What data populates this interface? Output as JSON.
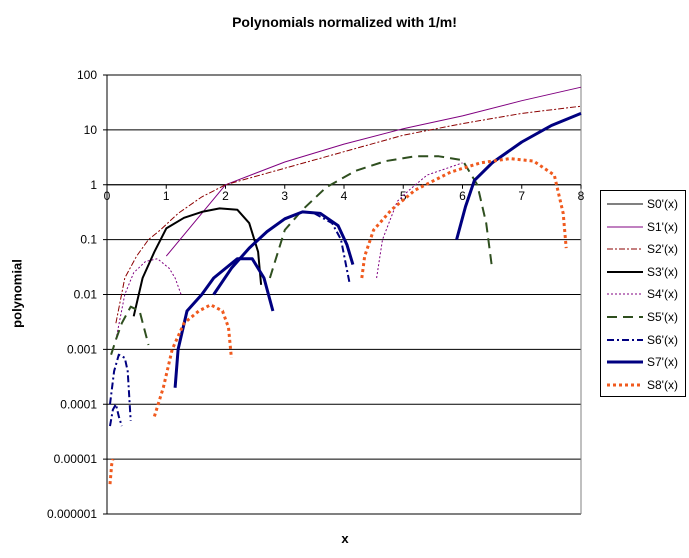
{
  "chart_data": {
    "type": "line",
    "title": "Polynomials normalized with 1/m!",
    "xlabel": "x",
    "ylabel": "polynomial",
    "xlim": [
      0,
      8
    ],
    "ylim": [
      1e-06,
      100
    ],
    "y_scale": "log",
    "x_ticks": [
      "0",
      "1",
      "2",
      "3",
      "4",
      "5",
      "6",
      "7",
      "8"
    ],
    "y_ticks": [
      "100",
      "10",
      "1",
      "0.1",
      "0.01",
      "0.001",
      "0.0001",
      "0.00001",
      "0.000001"
    ],
    "y_tick_values": [
      100,
      10,
      1,
      0.1,
      0.01,
      0.001,
      0.0001,
      1e-05,
      1e-06
    ],
    "x_axis_crosses_y_at": 1,
    "grid": "horizontal",
    "legend_position": "right",
    "series": [
      {
        "name": "S0'(x)",
        "color": "#000000",
        "style": "solid",
        "width": 1,
        "segments": []
      },
      {
        "name": "S1'(x)",
        "color": "#800080",
        "style": "solid",
        "width": 1,
        "segments": [
          [
            [
              1.0,
              0.05
            ],
            [
              2,
              1
            ],
            [
              3,
              2.6
            ],
            [
              4,
              5.5
            ],
            [
              5,
              10.5
            ],
            [
              6,
              18
            ],
            [
              7,
              34
            ],
            [
              8,
              60
            ]
          ]
        ]
      },
      {
        "name": "S2'(x)",
        "color": "#8b0000",
        "style": "dashdot",
        "width": 1,
        "segments": [
          [
            [
              0.15,
              0.003
            ],
            [
              0.3,
              0.02
            ],
            [
              0.5,
              0.05
            ],
            [
              0.7,
              0.1
            ],
            [
              0.9,
              0.15
            ],
            [
              1.2,
              0.3
            ],
            [
              1.6,
              0.6
            ],
            [
              2,
              1
            ],
            [
              3,
              2
            ],
            [
              4,
              4
            ],
            [
              5,
              8
            ],
            [
              6,
              13
            ],
            [
              7,
              20
            ],
            [
              8,
              27
            ]
          ]
        ]
      },
      {
        "name": "S3'(x)",
        "color": "#000000",
        "style": "solid",
        "width": 2,
        "segments": [
          [
            [
              0.45,
              0.004
            ],
            [
              0.6,
              0.02
            ],
            [
              0.8,
              0.06
            ],
            [
              1,
              0.16
            ],
            [
              1.3,
              0.25
            ],
            [
              1.6,
              0.32
            ],
            [
              1.9,
              0.37
            ],
            [
              2.2,
              0.35
            ],
            [
              2.4,
              0.2
            ],
            [
              2.55,
              0.06
            ],
            [
              2.6,
              0.015
            ]
          ]
        ]
      },
      {
        "name": "S4'(x)",
        "color": "#800080",
        "style": "dotted",
        "width": 1,
        "segments": [
          [
            [
              0.15,
              0.0015
            ],
            [
              0.3,
              0.01
            ],
            [
              0.45,
              0.025
            ],
            [
              0.65,
              0.04
            ],
            [
              0.85,
              0.045
            ],
            [
              1.05,
              0.03
            ],
            [
              1.15,
              0.02
            ],
            [
              1.25,
              0.01
            ]
          ],
          [
            [
              4.55,
              0.02
            ],
            [
              4.65,
              0.1
            ],
            [
              4.9,
              0.5
            ],
            [
              5.1,
              0.8
            ],
            [
              5.4,
              1.5
            ],
            [
              6,
              2.5
            ]
          ]
        ]
      },
      {
        "name": "S5'(x)",
        "color": "#2f4f1f",
        "style": "dashed",
        "width": 2,
        "segments": [
          [
            [
              0.07,
              0.0008
            ],
            [
              0.15,
              0.0015
            ],
            [
              0.25,
              0.003
            ],
            [
              0.4,
              0.006
            ],
            [
              0.55,
              0.005
            ],
            [
              0.7,
              0.0012
            ]
          ],
          [
            [
              2.75,
              0.02
            ],
            [
              3.0,
              0.15
            ],
            [
              3.3,
              0.35
            ],
            [
              3.7,
              0.9
            ],
            [
              4.2,
              1.8
            ],
            [
              4.7,
              2.7
            ],
            [
              5.2,
              3.3
            ],
            [
              5.6,
              3.3
            ],
            [
              6,
              2.8
            ],
            [
              6.25,
              1.0
            ],
            [
              6.4,
              0.2
            ],
            [
              6.5,
              0.03
            ]
          ]
        ]
      },
      {
        "name": "S6'(x)",
        "color": "#000080",
        "style": "dashdot",
        "width": 2,
        "segments": [
          [
            [
              0.05,
              4e-05
            ],
            [
              0.1,
              8e-05
            ],
            [
              0.15,
              0.0001
            ],
            [
              0.2,
              6e-05
            ],
            [
              0.25,
              4e-05
            ]
          ],
          [
            [
              0.05,
              0.0001
            ],
            [
              0.12,
              0.0004
            ],
            [
              0.2,
              0.0008
            ],
            [
              0.3,
              0.0007
            ],
            [
              0.35,
              0.0004
            ],
            [
              0.4,
              5e-05
            ]
          ],
          [
            [
              3.5,
              0.3
            ],
            [
              3.8,
              0.2
            ],
            [
              3.95,
              0.1
            ],
            [
              4.1,
              0.015
            ]
          ]
        ]
      },
      {
        "name": "S7'(x)",
        "color": "#000080",
        "style": "solid",
        "width": 3,
        "segments": [
          [
            [
              1.15,
              0.0002
            ],
            [
              1.2,
              0.001
            ],
            [
              1.35,
              0.005
            ],
            [
              1.6,
              0.01
            ],
            [
              1.8,
              0.02
            ],
            [
              2.2,
              0.045
            ],
            [
              2.45,
              0.045
            ],
            [
              2.65,
              0.02
            ],
            [
              2.8,
              0.005
            ]
          ],
          [
            [
              1.8,
              0.01
            ],
            [
              2.1,
              0.03
            ],
            [
              2.4,
              0.07
            ],
            [
              2.7,
              0.14
            ],
            [
              3.0,
              0.24
            ],
            [
              3.3,
              0.32
            ],
            [
              3.6,
              0.3
            ],
            [
              3.9,
              0.18
            ],
            [
              4.05,
              0.08
            ],
            [
              4.15,
              0.035
            ]
          ],
          [
            [
              5.9,
              0.1
            ],
            [
              6.05,
              0.4
            ],
            [
              6.2,
              1.2
            ],
            [
              6.5,
              2.5
            ],
            [
              7,
              6
            ],
            [
              7.5,
              12
            ],
            [
              8,
              20
            ]
          ]
        ]
      },
      {
        "name": "S8'(x)",
        "color": "#f05a1e",
        "style": "dotted",
        "width": 3,
        "segments": [
          [
            [
              0.05,
              3.5e-06
            ],
            [
              0.08,
              8e-06
            ],
            [
              0.1,
              1e-05
            ]
          ],
          [
            [
              0.8,
              6e-05
            ],
            [
              0.95,
              0.0002
            ],
            [
              1.1,
              0.001
            ],
            [
              1.3,
              0.003
            ],
            [
              1.55,
              0.005
            ],
            [
              1.75,
              0.0065
            ],
            [
              1.95,
              0.005
            ],
            [
              2.05,
              0.0025
            ],
            [
              2.1,
              0.0007
            ]
          ],
          [
            [
              4.3,
              0.02
            ],
            [
              4.35,
              0.05
            ],
            [
              4.5,
              0.15
            ],
            [
              4.8,
              0.35
            ],
            [
              5.2,
              0.8
            ],
            [
              5.8,
              1.7
            ],
            [
              6.3,
              2.5
            ],
            [
              6.8,
              3
            ],
            [
              7.2,
              2.7
            ],
            [
              7.55,
              1.5
            ],
            [
              7.7,
              0.3
            ],
            [
              7.75,
              0.07
            ]
          ]
        ]
      }
    ]
  }
}
